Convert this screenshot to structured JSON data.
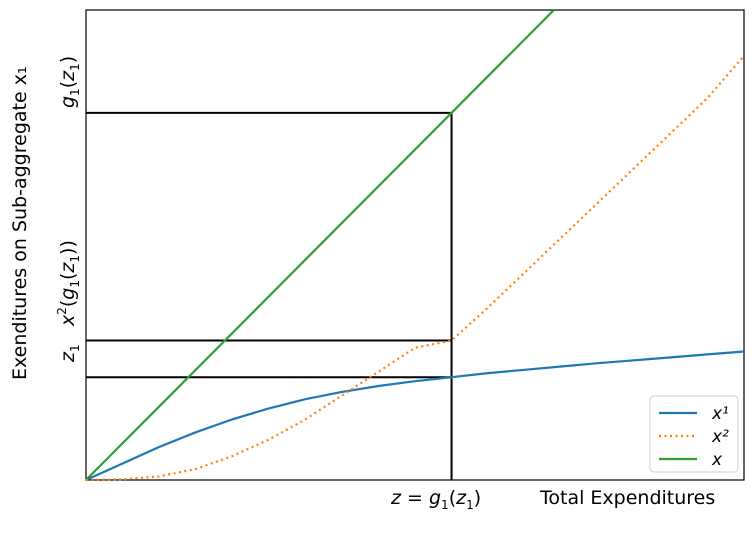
{
  "chart_data": {
    "type": "line",
    "title": "",
    "xlabel": "Total Expenditures",
    "ylabel": "Exenditures on Sub-aggregate x₁",
    "x_ticks": [
      {
        "label": "z = g₁(z₁)",
        "x": 1.0
      }
    ],
    "y_ticks": [
      {
        "label": "g₁(z₁)",
        "y": 1.0
      },
      {
        "label": "x²(g₁(z₁))",
        "y": 0.38
      },
      {
        "label": "z₁",
        "y": 0.28
      }
    ],
    "xlim": [
      0,
      1.8
    ],
    "ylim": [
      0,
      1.28
    ],
    "grid": false,
    "legend_position": "lower-right",
    "reference_lines": [
      {
        "name": "horizontal-g1z1",
        "y": 1.0,
        "x_end": 1.0
      },
      {
        "name": "horizontal-x2",
        "y": 0.38,
        "x_end": 1.0
      },
      {
        "name": "horizontal-z1",
        "y": 0.28,
        "x_end": 1.0
      },
      {
        "name": "vertical-z",
        "x": 1.0,
        "y_end": 1.0
      }
    ],
    "series": [
      {
        "name": "x¹",
        "color": "#1f77b4",
        "style": "solid",
        "x": [
          0,
          0.1,
          0.2,
          0.3,
          0.4,
          0.5,
          0.6,
          0.7,
          0.8,
          0.9,
          1.0,
          1.1,
          1.2,
          1.3,
          1.4,
          1.5,
          1.6,
          1.7,
          1.8
        ],
        "y": [
          0,
          0.045,
          0.09,
          0.13,
          0.165,
          0.195,
          0.22,
          0.24,
          0.256,
          0.269,
          0.28,
          0.291,
          0.3,
          0.309,
          0.318,
          0.326,
          0.334,
          0.342,
          0.35
        ]
      },
      {
        "name": "x²",
        "color": "#ff7f0e",
        "style": "dotted",
        "x": [
          0,
          0.1,
          0.2,
          0.3,
          0.4,
          0.5,
          0.6,
          0.7,
          0.8,
          0.9,
          1.0,
          1.1,
          1.2,
          1.3,
          1.4,
          1.5,
          1.6,
          1.7,
          1.8
        ],
        "y": [
          0,
          0.002,
          0.01,
          0.03,
          0.065,
          0.11,
          0.165,
          0.23,
          0.295,
          0.36,
          0.38,
          0.47,
          0.565,
          0.66,
          0.755,
          0.85,
          0.945,
          1.04,
          1.155
        ]
      },
      {
        "name": "x",
        "color": "#2ca02c",
        "style": "solid",
        "x": [
          0,
          1.0,
          1.28
        ],
        "y": [
          0,
          1.0,
          1.28
        ]
      }
    ]
  }
}
